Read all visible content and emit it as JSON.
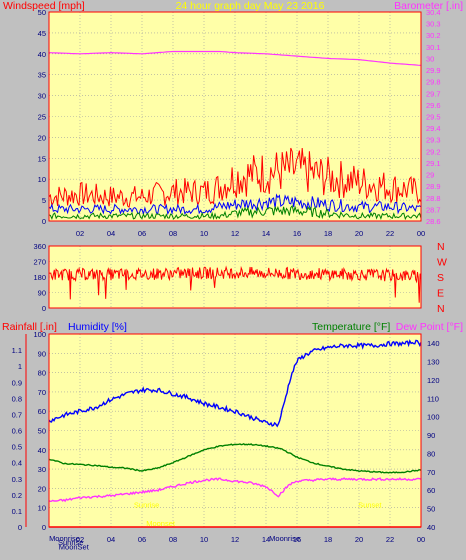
{
  "colors": {
    "background": "#c0c0c0",
    "plot": "#ffffa8",
    "grid": "#a0a0a0",
    "wind_gust": "#ff0000",
    "wind_avg": "#0000ff",
    "wind_low": "#008000",
    "barometer": "#ff33ff",
    "direction": "#ff0000",
    "humidity": "#0000ff",
    "temperature": "#008000",
    "dew_point": "#ff33ff",
    "rainfall": "#ff0000",
    "annotation": "#ffff00"
  },
  "chart_data": [
    {
      "type": "line",
      "name": "wind-barometer",
      "title": "24 hour graph day   May 23 2016",
      "ylabel_left": "Windspeed [mph]",
      "ylabel_right": "Barometer [.in]",
      "x_ticks": [
        "02",
        "04",
        "06",
        "08",
        "10",
        "12",
        "14",
        "16",
        "18",
        "20",
        "22",
        "00"
      ],
      "ylim_left": [
        0,
        50
      ],
      "y_ticks_left": [
        "0",
        "5",
        "10",
        "15",
        "20",
        "25",
        "30",
        "35",
        "40",
        "45",
        "50"
      ],
      "ylim_right": [
        28.6,
        30.4
      ],
      "y_ticks_right": [
        "28.6",
        "28.7",
        "28.8",
        "28.9",
        "29",
        "29.1",
        "29.2",
        "29.3",
        "29.4",
        "29.5",
        "29.6",
        "29.7",
        "29.8",
        "29.9",
        "30",
        "30.1",
        "30.2",
        "30.3",
        "30.4"
      ],
      "grid": true,
      "series": {
        "x_hours": [
          0,
          2,
          4,
          6,
          8,
          10,
          11,
          12,
          14,
          16,
          18,
          20,
          22,
          24
        ],
        "wind_gust_mph": [
          5,
          5.5,
          5,
          5,
          6,
          6,
          7,
          9,
          10,
          10.5,
          9,
          8,
          7,
          6
        ],
        "wind_avg_mph": [
          2.5,
          2.5,
          2.5,
          2.5,
          2.5,
          2.5,
          3,
          3.5,
          4,
          4,
          3.5,
          3,
          3,
          2.5
        ],
        "wind_low_mph": [
          1,
          1,
          1,
          1,
          1,
          1,
          1,
          1.5,
          2,
          2,
          1.5,
          1,
          1,
          1
        ],
        "barometer_in": [
          30.05,
          30.04,
          30.05,
          30.04,
          30.06,
          30.06,
          30.06,
          30.05,
          30.04,
          30.02,
          30.0,
          29.99,
          29.96,
          29.94
        ]
      }
    },
    {
      "type": "line",
      "name": "wind-direction",
      "ylim": [
        0,
        360
      ],
      "y_ticks": [
        "0",
        "90",
        "180",
        "270",
        "360"
      ],
      "compass_labels": [
        "N",
        "W",
        "S",
        "E",
        "N"
      ],
      "grid": true,
      "series": {
        "x_hours": [
          0,
          4,
          8,
          12,
          16,
          20,
          24
        ],
        "direction_deg": [
          195,
          195,
          200,
          205,
          200,
          195,
          185
        ]
      }
    },
    {
      "type": "line",
      "name": "temp-humidity-rain",
      "ylabel_left_1": "Rainfall [.in]",
      "ylabel_left_2": "Humidity [%]",
      "ylabel_right_1": "Temperature [°F]",
      "ylabel_right_2": "Dew Point [°F]",
      "x_ticks": [
        "02",
        "04",
        "06",
        "08",
        "10",
        "12",
        "14",
        "16",
        "18",
        "20",
        "22",
        "00"
      ],
      "ylim_rain": [
        0,
        1.2
      ],
      "y_ticks_rain": [
        "0",
        "0.1",
        "0.2",
        "0.3",
        "0.4",
        "0.5",
        "0.6",
        "0.7",
        "0.8",
        "0.9",
        "1",
        "1.1"
      ],
      "ylim_humidity": [
        0,
        100
      ],
      "y_ticks_humidity": [
        "0",
        "10",
        "20",
        "30",
        "40",
        "50",
        "60",
        "70",
        "80",
        "90",
        "100"
      ],
      "ylim_temp": [
        40,
        145
      ],
      "y_ticks_temp": [
        "40",
        "50",
        "60",
        "70",
        "80",
        "90",
        "100",
        "110",
        "120",
        "130",
        "140"
      ],
      "grid": true,
      "series": {
        "humidity_x": [
          0,
          1,
          2,
          3,
          4,
          5,
          6,
          7,
          8,
          9,
          10,
          11,
          12,
          13,
          14,
          14.8,
          15.2,
          15.6,
          16,
          16.5,
          17,
          18,
          19,
          20,
          21,
          22,
          23,
          23.6,
          24
        ],
        "humidity_pct": [
          55,
          58,
          60,
          62,
          66,
          69,
          71,
          71,
          69,
          67,
          64,
          62,
          60,
          57,
          54,
          53,
          65,
          78,
          86,
          89,
          91,
          93,
          94,
          94,
          94,
          95,
          95,
          96,
          95
        ],
        "temp_x": [
          0,
          1,
          2,
          3,
          4,
          5,
          6,
          7,
          8,
          9,
          10,
          11,
          12,
          13,
          14,
          15,
          16,
          17,
          18,
          19,
          20,
          21,
          22,
          23,
          24
        ],
        "temperature_f": [
          77,
          74.5,
          74,
          73.5,
          72.5,
          72,
          70.5,
          72,
          75,
          78.5,
          82,
          84,
          85,
          85,
          84,
          82.5,
          78,
          75,
          73,
          71.5,
          70.5,
          70,
          69.5,
          70,
          71
        ],
        "dewpoint_x": [
          0,
          1,
          2,
          3,
          4,
          5,
          6,
          7,
          8,
          9,
          10,
          11,
          12,
          13,
          14,
          14.8,
          15.5,
          16,
          18,
          20,
          22,
          24
        ],
        "dewpoint_f": [
          54,
          54.5,
          56,
          56.5,
          57,
          58,
          59,
          60,
          62,
          64,
          65.5,
          66,
          65,
          64,
          62,
          57,
          63,
          65,
          66,
          66,
          66,
          66
        ]
      },
      "annotations": [
        {
          "text": "Sunrise",
          "hour": 6.3,
          "rain_in": 0.12
        },
        {
          "text": "Moonset",
          "hour": 7.2,
          "rain_in": 0.005
        },
        {
          "text": "Sunset",
          "hour": 20.7,
          "rain_in": 0.12
        },
        {
          "text": "Moonrise",
          "hour": 15.2,
          "rain_in": -0.07
        },
        {
          "text": "Moonrise",
          "hour": 1.0,
          "rain_in": -0.07
        },
        {
          "text": "Sunrise",
          "hour": 1.4,
          "rain_in": -0.14
        },
        {
          "text": "MoonSet",
          "hour": 1.6,
          "rain_in": -0.21
        }
      ]
    }
  ]
}
